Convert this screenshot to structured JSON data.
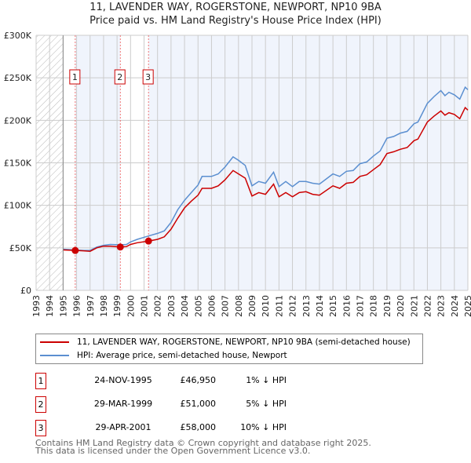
{
  "chart_data": {
    "type": "line",
    "title": "11, LAVENDER WAY, ROGERSTONE, NEWPORT, NP10 9BA",
    "subtitle": "Price paid vs. HM Land Registry's House Price Index (HPI)",
    "xlim": [
      1993,
      2025
    ],
    "ylim": [
      0,
      300000
    ],
    "y_ticks": [
      {
        "v": 0,
        "label": "£0"
      },
      {
        "v": 50000,
        "label": "£50K"
      },
      {
        "v": 100000,
        "label": "£100K"
      },
      {
        "v": 150000,
        "label": "£150K"
      },
      {
        "v": 200000,
        "label": "£200K"
      },
      {
        "v": 250000,
        "label": "£250K"
      },
      {
        "v": 300000,
        "label": "£300K"
      }
    ],
    "x_ticks": [
      "1993",
      "1994",
      "1995",
      "1996",
      "1997",
      "1998",
      "1999",
      "2000",
      "2001",
      "2002",
      "2003",
      "2004",
      "2005",
      "2006",
      "2007",
      "2008",
      "2009",
      "2010",
      "2011",
      "2012",
      "2013",
      "2014",
      "2015",
      "2016",
      "2017",
      "2018",
      "2019",
      "2020",
      "2021",
      "2022",
      "2023",
      "2024",
      "2025"
    ],
    "grid": true,
    "colors": {
      "property": "#cc0000",
      "hpi": "#5b8fd0",
      "shade": "#f0f4fc"
    },
    "series": [
      {
        "name": "11, LAVENDER WAY, ROGERSTONE, NEWPORT, NP10 9BA (semi-detached house)",
        "x": [
          1995,
          1995.9,
          1996.5,
          1997,
          1997.5,
          1998,
          1998.5,
          1999.24,
          1999.7,
          2000,
          2000.5,
          2001.33,
          2002,
          2002.5,
          2003,
          2003.5,
          2004,
          2004.5,
          2005,
          2005.3,
          2006,
          2006.5,
          2007,
          2007.6,
          2008,
          2008.5,
          2009,
          2009.5,
          2010,
          2010.6,
          2011,
          2011.5,
          2012,
          2012.5,
          2013,
          2013.5,
          2014,
          2015,
          2015.5,
          2016,
          2016.5,
          2017,
          2017.5,
          2018,
          2018.5,
          2019,
          2019.5,
          2020,
          2020.5,
          2021,
          2021.3,
          2022,
          2022.5,
          2023,
          2023.3,
          2023.6,
          2024,
          2024.4,
          2024.8,
          2025
        ],
        "y": [
          47500,
          46950,
          46500,
          46000,
          50000,
          52000,
          52000,
          51000,
          51500,
          54000,
          56000,
          58000,
          60000,
          63000,
          72000,
          85000,
          97000,
          105000,
          112000,
          120000,
          120000,
          123000,
          130000,
          141000,
          137000,
          132000,
          111000,
          115000,
          113000,
          125000,
          110000,
          115000,
          110000,
          115000,
          116000,
          113000,
          112000,
          123000,
          120000,
          126000,
          127000,
          134000,
          136000,
          142000,
          148000,
          161000,
          163000,
          166000,
          168000,
          176000,
          178000,
          198000,
          205000,
          211000,
          206000,
          209000,
          207000,
          202000,
          215000,
          212000
        ]
      },
      {
        "name": "HPI: Average price, semi-detached house, Newport",
        "x": [
          1995,
          1995.9,
          1996.5,
          1997,
          1997.5,
          1998,
          1998.5,
          1999.24,
          1999.7,
          2000,
          2000.5,
          2001.33,
          2002,
          2002.5,
          2003,
          2003.5,
          2004,
          2004.5,
          2005,
          2005.3,
          2006,
          2006.5,
          2007,
          2007.6,
          2008,
          2008.5,
          2009,
          2009.5,
          2010,
          2010.6,
          2011,
          2011.5,
          2012,
          2012.5,
          2013,
          2013.5,
          2014,
          2015,
          2015.5,
          2016,
          2016.5,
          2017,
          2017.5,
          2018,
          2018.5,
          2019,
          2019.5,
          2020,
          2020.5,
          2021,
          2021.3,
          2022,
          2022.5,
          2023,
          2023.3,
          2023.6,
          2024,
          2024.4,
          2024.8,
          2025
        ],
        "y": [
          48500,
          47500,
          47000,
          47000,
          51000,
          53000,
          54000,
          53500,
          54000,
          57000,
          60000,
          64000,
          67000,
          70000,
          80000,
          95000,
          106000,
          115000,
          124000,
          134000,
          134000,
          137000,
          145000,
          157000,
          153000,
          147000,
          123000,
          128000,
          126000,
          139000,
          122000,
          128000,
          122000,
          128000,
          128000,
          126000,
          125000,
          137000,
          134000,
          140000,
          141000,
          149000,
          151000,
          158000,
          164000,
          179000,
          181000,
          185000,
          187000,
          196000,
          198000,
          220000,
          228000,
          235000,
          229000,
          233000,
          230000,
          225000,
          239000,
          236000
        ]
      }
    ],
    "sales": [
      {
        "label": "1",
        "x": 1995.9,
        "price": 46950
      },
      {
        "label": "2",
        "x": 1999.24,
        "price": 51000
      },
      {
        "label": "3",
        "x": 2001.33,
        "price": 58000
      }
    ]
  },
  "legend": {
    "property": "11, LAVENDER WAY, ROGERSTONE, NEWPORT, NP10 9BA (semi-detached house)",
    "hpi": "HPI: Average price, semi-detached house, Newport"
  },
  "transactions": [
    {
      "num": "1",
      "date": "24-NOV-1995",
      "price": "£46,950",
      "hpi": "1% ↓ HPI"
    },
    {
      "num": "2",
      "date": "29-MAR-1999",
      "price": "£51,000",
      "hpi": "5% ↓ HPI"
    },
    {
      "num": "3",
      "date": "29-APR-2001",
      "price": "£58,000",
      "hpi": "10% ↓ HPI"
    }
  ],
  "footer": {
    "line1": "Contains HM Land Registry data © Crown copyright and database right 2025.",
    "line2": "This data is licensed under the Open Government Licence v3.0."
  }
}
